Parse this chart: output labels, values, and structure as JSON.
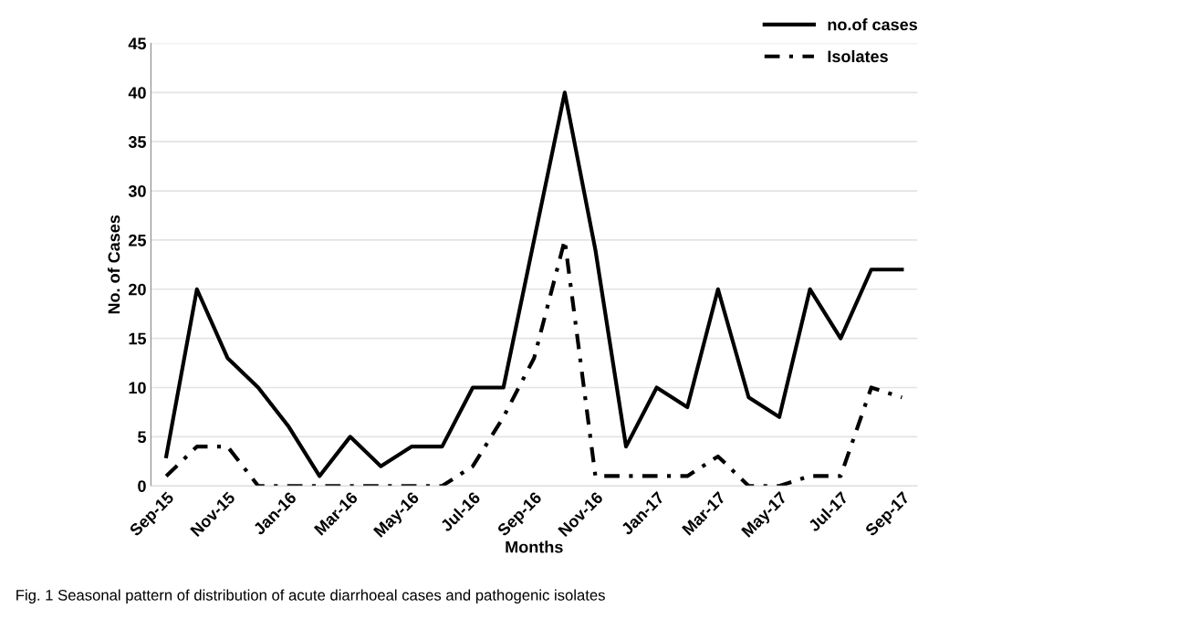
{
  "chart_data": {
    "type": "line",
    "xlabel": "Months",
    "ylabel": "No. of Cases",
    "categories": [
      "Sep-15",
      null,
      "Nov-15",
      null,
      "Jan-16",
      null,
      "Mar-16",
      null,
      "May-16",
      null,
      "Jul-16",
      null,
      "Sep-16",
      null,
      "Nov-16",
      null,
      "Jan-17",
      null,
      "Mar-17",
      null,
      "May-17",
      null,
      "Jul-17",
      null,
      "Sep-17"
    ],
    "series": [
      {
        "name": "no.of cases",
        "color": "#000000",
        "line_style": "solid",
        "values": [
          3,
          20,
          13,
          10,
          6,
          1,
          5,
          2,
          4,
          4,
          10,
          10,
          25,
          40,
          24,
          4,
          10,
          8,
          20,
          9,
          7,
          20,
          15,
          22,
          22
        ]
      },
      {
        "name": "Isolates",
        "color": "#000000",
        "line_style": "dashdot",
        "values": [
          1,
          4,
          4,
          0,
          0,
          0,
          0,
          0,
          0,
          0,
          2,
          7,
          13,
          25,
          1,
          1,
          1,
          1,
          3,
          0,
          0,
          1,
          1,
          10,
          9
        ]
      }
    ],
    "ylim": [
      0,
      45
    ],
    "yticks": [
      0,
      5,
      10,
      15,
      20,
      25,
      30,
      35,
      40,
      45
    ],
    "grid": "y",
    "legend": "top right",
    "marker": "none",
    "annotations": [
      "Fig. 1 Seasonal pattern of distribution of acute diarrhoeal cases and pathogenic isolates"
    ]
  }
}
